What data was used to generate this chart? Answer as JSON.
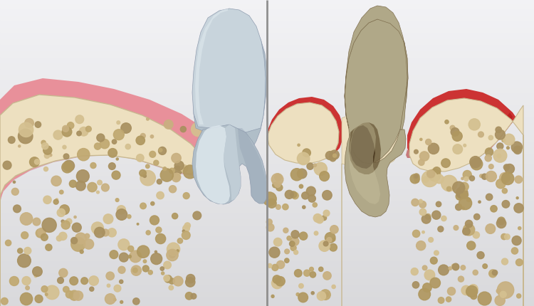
{
  "fig_width": 7.5,
  "fig_height": 4.3,
  "dpi": 100,
  "bg_light": "#e0e0e2",
  "bg_dark": "#c8c8cc",
  "healthy_gum": "#e8909a",
  "healthy_gum_edge": "#d07880",
  "healthy_gum_dark": "#c06070",
  "unhealthy_gum": "#cc3333",
  "unhealthy_gum_dark": "#aa1111",
  "bone_base": "#ede0c0",
  "bone_edge": "#c8b890",
  "pore_colors": [
    "#c0a870",
    "#b09860",
    "#d4c090",
    "#c8b080",
    "#a89060"
  ],
  "tooth_healthy_base": "#b0bec8",
  "tooth_healthy_highlight": "#e0eaf0",
  "tooth_healthy_mid": "#c8d4dc",
  "tooth_healthy_shadow": "#909db0",
  "tooth_unhealthy_base": "#b0a888",
  "tooth_unhealthy_highlight": "#ccc4a0",
  "tooth_unhealthy_dark": "#807050",
  "tooth_unhealthy_tartar": "#6a5838",
  "tooth_unhealthy_very_dark": "#3a2810",
  "divider": "#909090"
}
